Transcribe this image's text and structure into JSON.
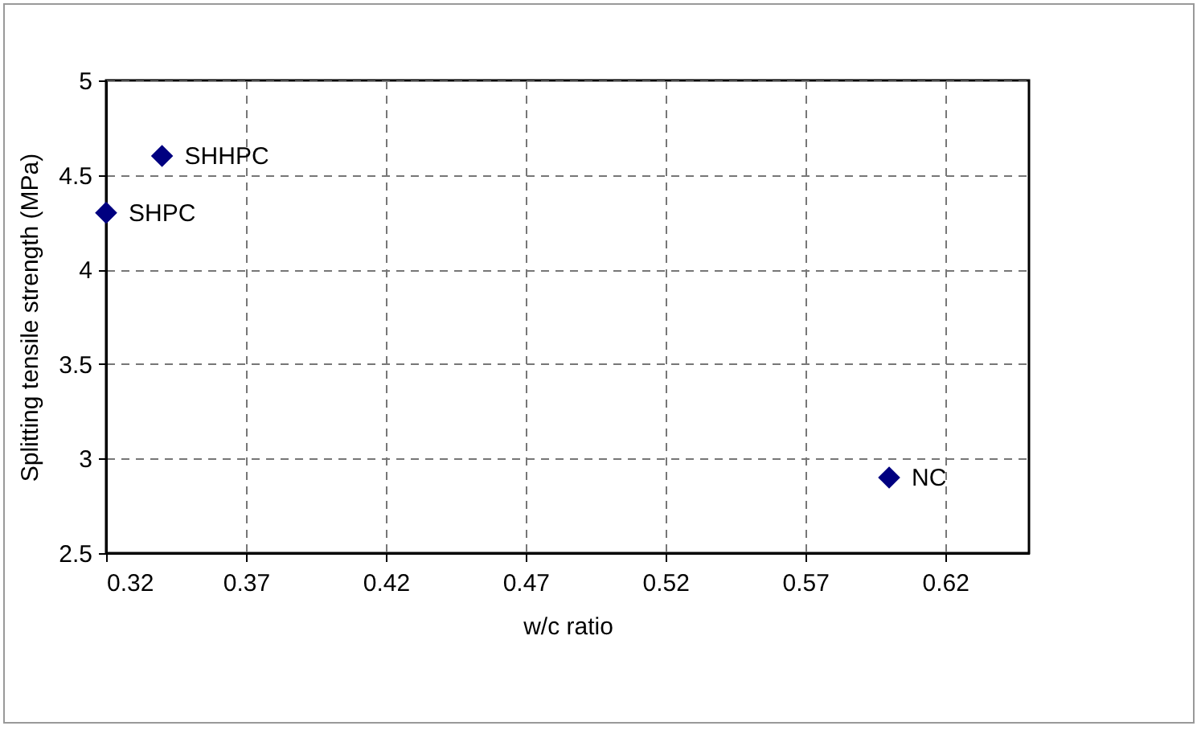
{
  "chart_data": {
    "type": "scatter",
    "xlabel": "w/c ratio",
    "ylabel": "Splitting tensile strength (MPa)",
    "x": [
      0.32,
      0.34,
      0.6
    ],
    "series": [
      {
        "color": "#000080",
        "values": [
          4.3,
          4.6,
          2.9
        ]
      }
    ],
    "annotations": [
      {
        "text": "SHPC",
        "x": 0.32,
        "y": 4.3
      },
      {
        "text": "SHHPC",
        "x": 0.34,
        "y": 4.6
      },
      {
        "text": "NC",
        "x": 0.6,
        "y": 2.9
      }
    ],
    "xlim": [
      0.32,
      0.65
    ],
    "xticks": [
      0.32,
      0.37,
      0.42,
      0.47,
      0.52,
      0.57,
      0.62
    ],
    "ylim": [
      2.5,
      5
    ],
    "yticks": [
      2.5,
      3,
      3.5,
      4,
      4.5,
      5
    ],
    "grid": true,
    "marker": "diamond"
  }
}
